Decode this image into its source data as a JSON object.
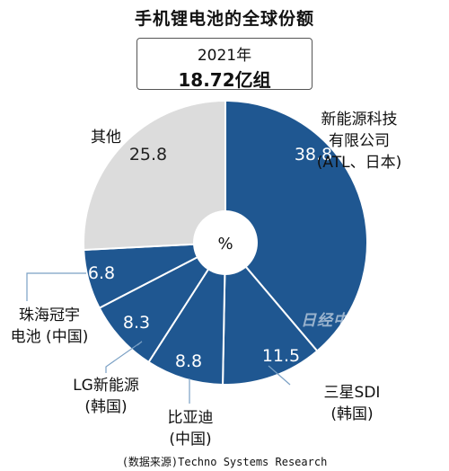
{
  "title": "手机锂电池的全球份额",
  "summary": {
    "year": "2021年",
    "total": "18.72亿组"
  },
  "center_label": "%",
  "source": "(数据来源)Techno Systems Research",
  "watermark": "日经中文网",
  "colors": {
    "blue": "#1f5791",
    "gray": "#dcdcdc",
    "white": "#ffffff",
    "leader": "#7aa0c4"
  },
  "chart_data": {
    "type": "pie",
    "unit": "%",
    "slices": [
      {
        "label": "新能源科技 有限公司 (ATL、日本)",
        "label_lines": [
          "新能源科技",
          "有限公司",
          "(ATL、日本)"
        ],
        "value": 38.8,
        "value_text": "38.8",
        "color": "#1f5791"
      },
      {
        "label": "三星SDI (韩国)",
        "label_lines": [
          "三星SDI",
          "(韩国)"
        ],
        "value": 11.5,
        "value_text": "11.5",
        "color": "#1f5791"
      },
      {
        "label": "比亚迪 (中国)",
        "label_lines": [
          "比亚迪",
          "(中国)"
        ],
        "value": 8.8,
        "value_text": "8.8",
        "color": "#1f5791"
      },
      {
        "label": "LG新能源 (韩国)",
        "label_lines": [
          "LG新能源",
          "(韩国)"
        ],
        "value": 8.3,
        "value_text": "8.3",
        "color": "#1f5791"
      },
      {
        "label": "珠海冠宇 电池 (中国)",
        "label_lines": [
          "珠海冠宇",
          "电池 (中国)"
        ],
        "value": 6.8,
        "value_text": "6.8",
        "color": "#1f5791"
      },
      {
        "label": "其他",
        "label_lines": [
          "其他"
        ],
        "value": 25.8,
        "value_text": "25.8",
        "color": "#dcdcdc"
      }
    ]
  }
}
